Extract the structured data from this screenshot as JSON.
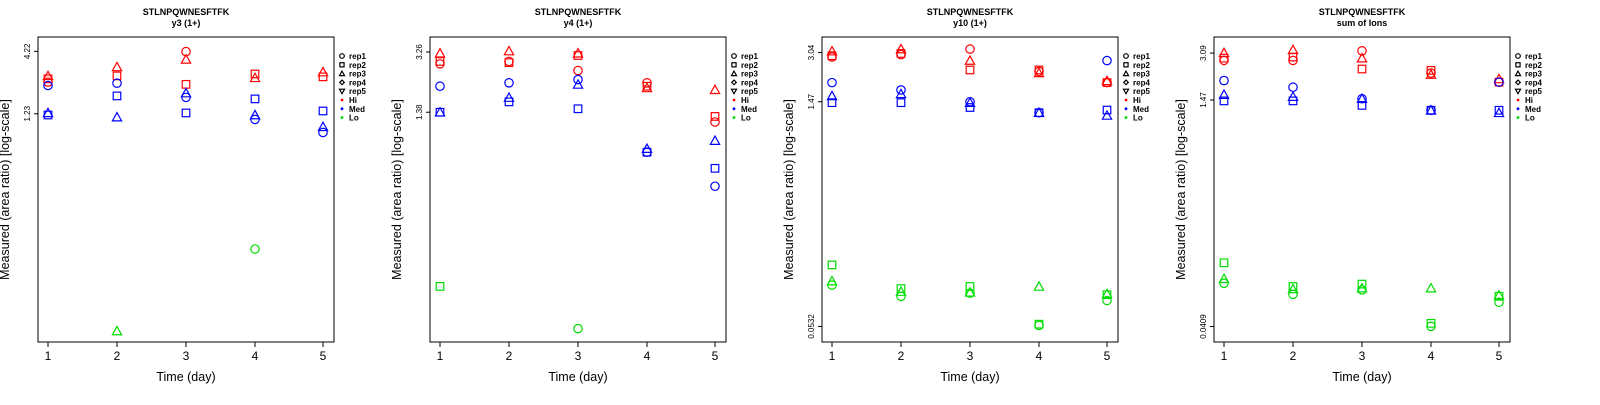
{
  "figure": {
    "title": "STLNPQWNESFTFK"
  },
  "colors": {
    "Hi": "#ff0000",
    "Med": "#0000ff",
    "Lo": "#00dd00"
  },
  "legend": {
    "placement": "right",
    "entries": [
      {
        "label": "rep1",
        "marker": "circle"
      },
      {
        "label": "rep2",
        "marker": "square"
      },
      {
        "label": "rep3",
        "marker": "triangle-up"
      },
      {
        "label": "rep4",
        "marker": "diamond"
      },
      {
        "label": "rep5",
        "marker": "triangle-down"
      },
      {
        "label": "Hi",
        "marker": "dot",
        "color": "#ff0000"
      },
      {
        "label": "Med",
        "marker": "dot",
        "color": "#0000ff"
      },
      {
        "label": "Lo",
        "marker": "dot",
        "color": "#00dd00"
      }
    ]
  },
  "chart_data": [
    {
      "type": "scatter",
      "title": "STLNPQWNESFTFK",
      "subtitle": "y3 (1+)",
      "xlabel": "Time (day)",
      "ylabel": "Measured (area ratio) [log-scale]",
      "yscale": "log",
      "x_ticks": [
        1,
        2,
        3,
        4,
        5
      ],
      "y_tick_labels": [
        "1.23",
        "4.22"
      ],
      "y_ticks": [
        1.23,
        4.22
      ],
      "ylim": [
        0.0165,
        4.6
      ],
      "series": [
        {
          "name": "Hi",
          "color": "#ff0000",
          "points": [
            [
              1,
              2.3,
              "circle"
            ],
            [
              1,
              2.45,
              "square"
            ],
            [
              1,
              2.6,
              "triangle-up"
            ],
            [
              2,
              2.6,
              "square"
            ],
            [
              2,
              3.1,
              "triangle-up"
            ],
            [
              3,
              4.2,
              "circle"
            ],
            [
              3,
              3.6,
              "triangle-up"
            ],
            [
              3,
              2.2,
              "square"
            ],
            [
              4,
              2.7,
              "square"
            ],
            [
              4,
              2.5,
              "triangle-up"
            ],
            [
              5,
              2.55,
              "square"
            ],
            [
              5,
              2.8,
              "triangle-up"
            ]
          ]
        },
        {
          "name": "Med",
          "color": "#0000ff",
          "points": [
            [
              1,
              2.15,
              "circle"
            ],
            [
              1,
              1.2,
              "square"
            ],
            [
              1,
              1.25,
              "triangle-up"
            ],
            [
              2,
              2.25,
              "circle"
            ],
            [
              2,
              1.75,
              "square"
            ],
            [
              2,
              1.15,
              "triangle-up"
            ],
            [
              3,
              1.7,
              "circle"
            ],
            [
              3,
              1.25,
              "square"
            ],
            [
              3,
              1.85,
              "triangle-up"
            ],
            [
              4,
              1.1,
              "circle"
            ],
            [
              4,
              1.65,
              "square"
            ],
            [
              4,
              1.2,
              "triangle-up"
            ],
            [
              5,
              0.85,
              "circle"
            ],
            [
              5,
              1.3,
              "square"
            ],
            [
              5,
              0.95,
              "triangle-up"
            ]
          ]
        },
        {
          "name": "Lo",
          "color": "#00dd00",
          "points": [
            [
              2,
              0.0168,
              "triangle-up"
            ],
            [
              4,
              0.085,
              "circle"
            ]
          ]
        }
      ]
    },
    {
      "type": "scatter",
      "title": "STLNPQWNESFTFK",
      "subtitle": "y4 (1+)",
      "xlabel": "Time (day)",
      "ylabel": "Measured (area ratio) [log-scale]",
      "yscale": "log",
      "x_ticks": [
        1,
        2,
        3,
        4,
        5
      ],
      "y_tick_labels": [
        "1.38",
        "3.26"
      ],
      "y_ticks": [
        1.38,
        3.26
      ],
      "ylim": [
        0.06,
        3.5
      ],
      "series": [
        {
          "name": "Hi",
          "color": "#ff0000",
          "points": [
            [
              1,
              2.75,
              "circle"
            ],
            [
              1,
              2.85,
              "square"
            ],
            [
              1,
              3.2,
              "triangle-up"
            ],
            [
              2,
              2.85,
              "circle"
            ],
            [
              2,
              2.8,
              "square"
            ],
            [
              2,
              3.3,
              "triangle-up"
            ],
            [
              3,
              2.5,
              "circle"
            ],
            [
              3,
              3.1,
              "square"
            ],
            [
              3,
              3.2,
              "triangle-up"
            ],
            [
              4,
              2.1,
              "circle"
            ],
            [
              4,
              2.0,
              "square"
            ],
            [
              4,
              1.95,
              "triangle-up"
            ],
            [
              5,
              1.2,
              "circle"
            ],
            [
              5,
              1.3,
              "square"
            ],
            [
              5,
              1.9,
              "triangle-up"
            ]
          ]
        },
        {
          "name": "Med",
          "color": "#0000ff",
          "points": [
            [
              1,
              2.0,
              "circle"
            ],
            [
              1,
              1.38,
              "square"
            ],
            [
              1,
              1.38,
              "triangle-up"
            ],
            [
              2,
              2.1,
              "circle"
            ],
            [
              2,
              1.6,
              "square"
            ],
            [
              2,
              1.7,
              "triangle-up"
            ],
            [
              3,
              2.2,
              "circle"
            ],
            [
              3,
              1.45,
              "square"
            ],
            [
              3,
              2.05,
              "triangle-up"
            ],
            [
              4,
              0.78,
              "circle"
            ],
            [
              4,
              0.78,
              "square"
            ],
            [
              4,
              0.82,
              "triangle-up"
            ],
            [
              5,
              0.48,
              "circle"
            ],
            [
              5,
              0.62,
              "square"
            ],
            [
              5,
              0.92,
              "triangle-up"
            ]
          ]
        },
        {
          "name": "Lo",
          "color": "#00dd00",
          "points": [
            [
              1,
              0.115,
              "square"
            ],
            [
              3,
              0.063,
              "circle"
            ]
          ]
        }
      ]
    },
    {
      "type": "scatter",
      "title": "STLNPQWNESFTFK",
      "subtitle": "y10 (1+)",
      "xlabel": "Time (day)",
      "ylabel": "Measured (area ratio) [log-scale]",
      "yscale": "log",
      "x_ticks": [
        1,
        2,
        3,
        4,
        5
      ],
      "y_tick_labels": [
        "0.0532",
        "1.47",
        "3.04"
      ],
      "y_ticks": [
        0.0532,
        1.47,
        3.04
      ],
      "ylim": [
        0.049,
        3.3
      ],
      "series": [
        {
          "name": "Hi",
          "color": "#ff0000",
          "points": [
            [
              1,
              2.85,
              "circle"
            ],
            [
              1,
              2.9,
              "square"
            ],
            [
              1,
              3.1,
              "triangle-up"
            ],
            [
              2,
              2.95,
              "circle"
            ],
            [
              2,
              3.0,
              "square"
            ],
            [
              2,
              3.2,
              "triangle-up"
            ],
            [
              3,
              3.2,
              "circle"
            ],
            [
              3,
              2.35,
              "square"
            ],
            [
              3,
              2.7,
              "triangle-up"
            ],
            [
              4,
              2.3,
              "circle"
            ],
            [
              4,
              2.35,
              "square"
            ],
            [
              4,
              2.25,
              "triangle-up"
            ],
            [
              5,
              1.95,
              "circle"
            ],
            [
              5,
              1.95,
              "square"
            ],
            [
              5,
              2.0,
              "triangle-up"
            ]
          ]
        },
        {
          "name": "Med",
          "color": "#0000ff",
          "points": [
            [
              1,
              1.95,
              "circle"
            ],
            [
              1,
              1.45,
              "square"
            ],
            [
              1,
              1.6,
              "triangle-up"
            ],
            [
              2,
              1.75,
              "circle"
            ],
            [
              2,
              1.45,
              "square"
            ],
            [
              2,
              1.65,
              "triangle-up"
            ],
            [
              3,
              1.47,
              "circle"
            ],
            [
              3,
              1.35,
              "square"
            ],
            [
              3,
              1.45,
              "triangle-up"
            ],
            [
              4,
              1.25,
              "circle"
            ],
            [
              4,
              1.25,
              "square"
            ],
            [
              4,
              1.25,
              "triangle-up"
            ],
            [
              5,
              2.7,
              "circle"
            ],
            [
              5,
              1.3,
              "square"
            ],
            [
              5,
              1.2,
              "triangle-up"
            ]
          ]
        },
        {
          "name": "Lo",
          "color": "#00dd00",
          "points": [
            [
              1,
              0.098,
              "circle"
            ],
            [
              1,
              0.132,
              "square"
            ],
            [
              1,
              0.104,
              "triangle-up"
            ],
            [
              2,
              0.083,
              "circle"
            ],
            [
              2,
              0.093,
              "square"
            ],
            [
              2,
              0.089,
              "triangle-up"
            ],
            [
              3,
              0.087,
              "circle"
            ],
            [
              3,
              0.096,
              "square"
            ],
            [
              3,
              0.088,
              "triangle-up"
            ],
            [
              4,
              0.054,
              "circle"
            ],
            [
              4,
              0.055,
              "square"
            ],
            [
              4,
              0.096,
              "triangle-up"
            ],
            [
              5,
              0.078,
              "circle"
            ],
            [
              5,
              0.085,
              "square"
            ],
            [
              5,
              0.086,
              "triangle-up"
            ]
          ]
        }
      ]
    },
    {
      "type": "scatter",
      "title": "STLNPQWNESFTFK",
      "subtitle": "sum of Ions",
      "xlabel": "Time (day)",
      "ylabel": "Measured (area ratio) [log-scale]",
      "yscale": "log",
      "x_ticks": [
        1,
        2,
        3,
        4,
        5
      ],
      "y_tick_labels": [
        "0.0409",
        "1.47",
        "3.09"
      ],
      "y_ticks": [
        0.0409,
        1.47,
        3.09
      ],
      "ylim": [
        0.0375,
        3.4
      ],
      "series": [
        {
          "name": "Hi",
          "color": "#ff0000",
          "points": [
            [
              1,
              2.75,
              "circle"
            ],
            [
              1,
              2.85,
              "square"
            ],
            [
              1,
              3.1,
              "triangle-up"
            ],
            [
              2,
              2.75,
              "circle"
            ],
            [
              2,
              2.9,
              "square"
            ],
            [
              2,
              3.25,
              "triangle-up"
            ],
            [
              3,
              3.2,
              "circle"
            ],
            [
              3,
              2.4,
              "square"
            ],
            [
              3,
              2.85,
              "triangle-up"
            ],
            [
              4,
              2.25,
              "circle"
            ],
            [
              4,
              2.35,
              "square"
            ],
            [
              4,
              2.2,
              "triangle-up"
            ],
            [
              5,
              1.95,
              "circle"
            ],
            [
              5,
              1.95,
              "square"
            ],
            [
              5,
              2.05,
              "triangle-up"
            ]
          ]
        },
        {
          "name": "Med",
          "color": "#0000ff",
          "points": [
            [
              1,
              2.0,
              "circle"
            ],
            [
              1,
              1.45,
              "square"
            ],
            [
              1,
              1.6,
              "triangle-up"
            ],
            [
              2,
              1.8,
              "circle"
            ],
            [
              2,
              1.45,
              "square"
            ],
            [
              2,
              1.55,
              "triangle-up"
            ],
            [
              3,
              1.5,
              "circle"
            ],
            [
              3,
              1.35,
              "square"
            ],
            [
              3,
              1.5,
              "triangle-up"
            ],
            [
              4,
              1.25,
              "circle"
            ],
            [
              4,
              1.25,
              "square"
            ],
            [
              4,
              1.25,
              "triangle-up"
            ],
            [
              5,
              1.95,
              "circle"
            ],
            [
              5,
              1.25,
              "square"
            ],
            [
              5,
              1.2,
              "triangle-up"
            ]
          ]
        },
        {
          "name": "Lo",
          "color": "#00dd00",
          "points": [
            [
              1,
              0.081,
              "circle"
            ],
            [
              1,
              0.112,
              "square"
            ],
            [
              1,
              0.087,
              "triangle-up"
            ],
            [
              2,
              0.068,
              "circle"
            ],
            [
              2,
              0.077,
              "square"
            ],
            [
              2,
              0.074,
              "triangle-up"
            ],
            [
              3,
              0.073,
              "circle"
            ],
            [
              3,
              0.08,
              "square"
            ],
            [
              3,
              0.075,
              "triangle-up"
            ],
            [
              4,
              0.041,
              "circle"
            ],
            [
              4,
              0.043,
              "square"
            ],
            [
              4,
              0.075,
              "triangle-up"
            ],
            [
              5,
              0.06,
              "circle"
            ],
            [
              5,
              0.066,
              "square"
            ],
            [
              5,
              0.067,
              "triangle-up"
            ]
          ]
        }
      ]
    }
  ]
}
